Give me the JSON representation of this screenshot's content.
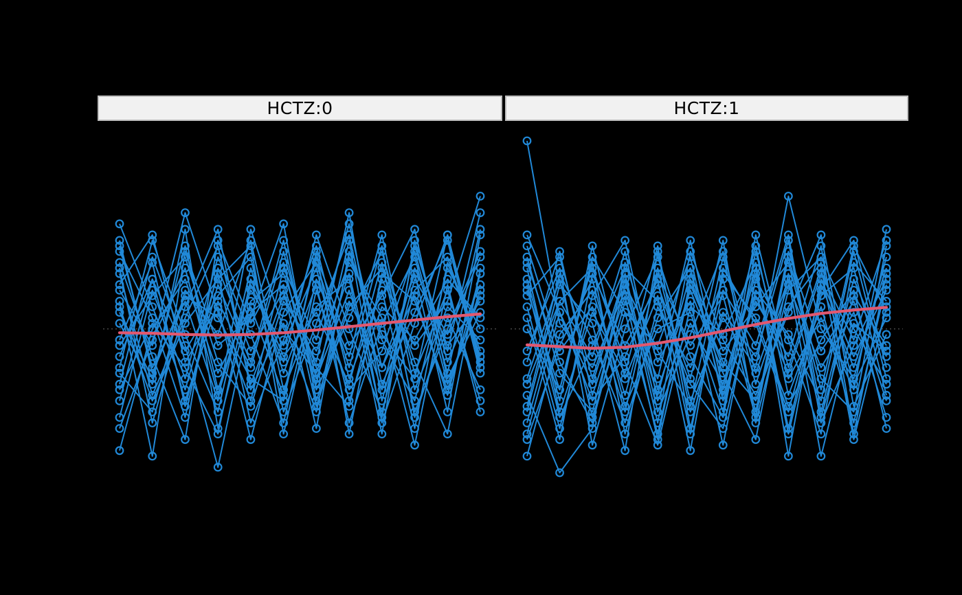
{
  "figure": {
    "background_color": "#000000"
  },
  "strip_style": {
    "fill": "#f1f1f1",
    "border": "#bdbdbd",
    "text_color": "#000000"
  },
  "chart_data": {
    "type": "line",
    "subtype": "longitudinal-spaghetti-with-smoother",
    "facet_variable": "HCTZ",
    "x": [
      1,
      2,
      3,
      4,
      5,
      6,
      7,
      8,
      9,
      10,
      11,
      12
    ],
    "ylim": [
      55,
      115
    ],
    "reference_line": 81,
    "legend": "none",
    "grid": "off",
    "colors": {
      "series": "#2189d8",
      "trend": "#e25870",
      "reference": "#4d4d4d"
    },
    "panels": [
      {
        "facet": "HCTZ:0",
        "trend": [
          80.3,
          80.2,
          80.0,
          79.9,
          80.0,
          80.3,
          80.8,
          81.4,
          82.0,
          82.6,
          83.2,
          83.7
        ],
        "series": [
          [
            84,
            72,
            96,
            70,
            88,
            78,
            92,
            68,
            85,
            79,
            90,
            83
          ],
          [
            76,
            90,
            68,
            86,
            74,
            95,
            72,
            88,
            70,
            92,
            78,
            86
          ],
          [
            92,
            64,
            85,
            99,
            70,
            82,
            66,
            94,
            80,
            72,
            98,
            75
          ],
          [
            70,
            82,
            74,
            62,
            90,
            76,
            84,
            71,
            93,
            66,
            81,
            95
          ],
          [
            88,
            78,
            102,
            84,
            68,
            92,
            79,
            100,
            74,
            87,
            69,
            91
          ],
          [
            65,
            88,
            72,
            94,
            80,
            64,
            90,
            76,
            98,
            70,
            85,
            79
          ],
          [
            96,
            74,
            86,
            68,
            99,
            81,
            73,
            91,
            65,
            96,
            77,
            102
          ],
          [
            79,
            93,
            67,
            89,
            75,
            97,
            70,
            83,
            95,
            73,
            88,
            68
          ],
          [
            59,
            81,
            90,
            73,
            85,
            69,
            94,
            78,
            87,
            99,
            72,
            84
          ],
          [
            91,
            69,
            83,
            96,
            71,
            87,
            75,
            102,
            68,
            90,
            80,
            94
          ],
          [
            74,
            97,
            80,
            66,
            92,
            73,
            89,
            64,
            82,
            94,
            71,
            87
          ],
          [
            86,
            58,
            95,
            78,
            83,
            100,
            68,
            86,
            74,
            91,
            66,
            98
          ],
          [
            100,
            85,
            70,
            91,
            64,
            79,
            96,
            72,
            88,
            63,
            93,
            77
          ],
          [
            68,
            90,
            77,
            87,
            94,
            66,
            82,
            98,
            71,
            84,
            97,
            73
          ],
          [
            82,
            71,
            99,
            63,
            86,
            91,
            74,
            67,
            90,
            78,
            86,
            105
          ],
          [
            95,
            83,
            65,
            92,
            77,
            88,
            63,
            95,
            79,
            68,
            92,
            81
          ],
          [
            73,
            66,
            88,
            80,
            97,
            70,
            85,
            90,
            62,
            97,
            75,
            89
          ],
          [
            89,
            98,
            75,
            85,
            61,
            84,
            93,
            74,
            96,
            65,
            83,
            70
          ],
          [
            63,
            79,
            92,
            69,
            89,
            75,
            98,
            81,
            66,
            88,
            94,
            76
          ],
          [
            93,
            76,
            61,
            97,
            82,
            93,
            67,
            85,
            92,
            75,
            62,
            92
          ],
          [
            78,
            87,
            94,
            75,
            67,
            86,
            77,
            93,
            83,
            60,
            89,
            66
          ],
          [
            85,
            68,
            82,
            90,
            96,
            62,
            88,
            70,
            77,
            95,
            73,
            99
          ],
          [
            71,
            94,
            78,
            56,
            84,
            89,
            71,
            97,
            64,
            82,
            98,
            74
          ],
          [
            97,
            73,
            87,
            83,
            72,
            68,
            95,
            62,
            91,
            86,
            70,
            88
          ]
        ]
      },
      {
        "facet": "HCTZ:1",
        "trend": [
          78.1,
          77.8,
          77.5,
          77.7,
          78.4,
          79.4,
          80.6,
          81.8,
          82.9,
          83.8,
          84.4,
          84.9
        ],
        "series": [
          [
            115,
            82,
            74,
            88,
            69,
            91,
            77,
            85,
            93,
            70,
            96,
            84
          ],
          [
            72,
            90,
            65,
            84,
            78,
            94,
            68,
            87,
            73,
            91,
            79,
            97
          ],
          [
            88,
            70,
            93,
            62,
            85,
            74,
            90,
            66,
            95,
            77,
            86,
            68
          ],
          [
            64,
            86,
            76,
            95,
            68,
            82,
            71,
            92,
            63,
            89,
            74,
            92
          ],
          [
            92,
            66,
            84,
            73,
            96,
            63,
            88,
            78,
            98,
            66,
            90,
            76
          ],
          [
            75,
            95,
            69,
            87,
            61,
            90,
            74,
            96,
            69,
            85,
            64,
            89
          ],
          [
            83,
            61,
            91,
            78,
            89,
            72,
            97,
            64,
            88,
            94,
            81,
            71
          ],
          [
            69,
            55,
            63,
            93,
            75,
            86,
            60,
            90,
            79,
            62,
            93,
            86
          ],
          [
            96,
            77,
            85,
            66,
            92,
            68,
            83,
            74,
            105,
            81,
            72,
            94
          ],
          [
            62,
            84,
            71,
            90,
            64,
            95,
            79,
            69,
            84,
            98,
            67,
            80
          ],
          [
            90,
            68,
            96,
            72,
            87,
            59,
            92,
            82,
            66,
            88,
            97,
            74
          ],
          [
            77,
            92,
            60,
            81,
            94,
            76,
            65,
            95,
            72,
            83,
            70,
            99
          ],
          [
            85,
            63,
            87,
            97,
            70,
            88,
            73,
            61,
            91,
            65,
            87,
            78
          ],
          [
            67,
            91,
            79,
            64,
            83,
            92,
            69,
            86,
            76,
            96,
            62,
            91
          ],
          [
            94,
            73,
            66,
            89,
            77,
            67,
            94,
            71,
            89,
            74,
            84,
            65
          ],
          [
            71,
            86,
            92,
            75,
            60,
            85,
            80,
            93,
            58,
            90,
            76,
            88
          ],
          [
            89,
            65,
            78,
            92,
            86,
            71,
            63,
            88,
            80,
            68,
            95,
            72
          ],
          [
            58,
            80,
            88,
            69,
            91,
            78,
            87,
            65,
            94,
            72,
            66,
            96
          ],
          [
            93,
            75,
            64,
            86,
            72,
            97,
            70,
            91,
            62,
            87,
            92,
            69
          ],
          [
            66,
            89,
            82,
            59,
            95,
            66,
            84,
            76,
            97,
            64,
            78,
            90
          ],
          [
            81,
            70,
            94,
            84,
            62,
            89,
            75,
            68,
            85,
            93,
            71,
            83
          ],
          [
            98,
            84,
            68,
            76,
            90,
            62,
            91,
            83,
            67,
            79,
            88,
            63
          ],
          [
            61,
            78,
            90,
            67,
            81,
            84,
            66,
            98,
            74,
            92,
            61,
            85
          ],
          [
            87,
            94,
            72,
            91,
            66,
            80,
            95,
            73,
            90,
            58,
            82,
            77
          ]
        ]
      }
    ]
  }
}
